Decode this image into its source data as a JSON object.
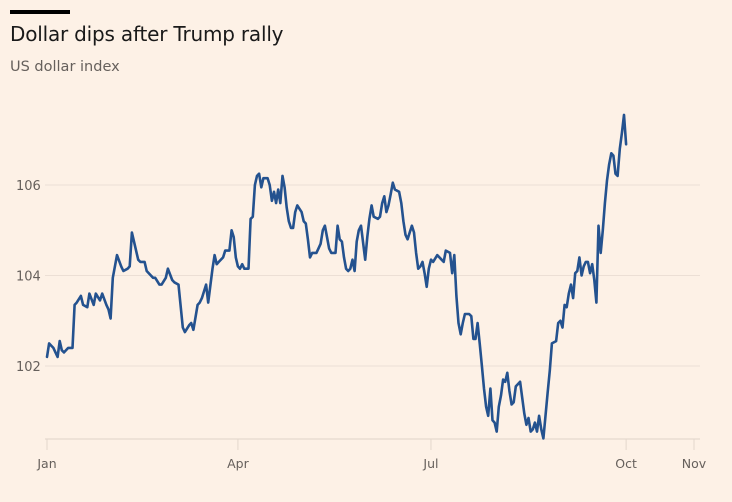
{
  "chart_data": {
    "type": "line",
    "title": "Dollar dips after Trump rally",
    "subtitle": "US dollar index",
    "xlabel": "",
    "ylabel": "",
    "ylim": [
      100.4,
      107.7
    ],
    "grid": true,
    "y_ticks": [
      102,
      104,
      106
    ],
    "y_tick_labels": [
      "102",
      "104",
      "106"
    ],
    "x_ticks": [
      {
        "day": 0,
        "label": "Jan"
      },
      {
        "day": 90,
        "label": "Apr"
      },
      {
        "day": 181,
        "label": "Jul"
      },
      {
        "day": 273,
        "label": "Oct"
      },
      {
        "day": 305,
        "label": "Nov"
      }
    ],
    "xlim_days": [
      0,
      305
    ],
    "series": [
      {
        "name": "US dollar index",
        "color": "#24528f",
        "points": [
          [
            0,
            102.2
          ],
          [
            1,
            102.5
          ],
          [
            2,
            102.45
          ],
          [
            3,
            102.4
          ],
          [
            5,
            102.2
          ],
          [
            6,
            102.55
          ],
          [
            7,
            102.35
          ],
          [
            8,
            102.3
          ],
          [
            10,
            102.4
          ],
          [
            12,
            102.4
          ],
          [
            13,
            103.35
          ],
          [
            14,
            103.4
          ],
          [
            16,
            103.55
          ],
          [
            17,
            103.35
          ],
          [
            19,
            103.3
          ],
          [
            20,
            103.6
          ],
          [
            22,
            103.35
          ],
          [
            23,
            103.6
          ],
          [
            25,
            103.45
          ],
          [
            26,
            103.6
          ],
          [
            28,
            103.35
          ],
          [
            29,
            103.25
          ],
          [
            30,
            103.05
          ],
          [
            31,
            103.95
          ],
          [
            33,
            104.45
          ],
          [
            35,
            104.2
          ],
          [
            36,
            104.1
          ],
          [
            38,
            104.15
          ],
          [
            39,
            104.2
          ],
          [
            40,
            104.95
          ],
          [
            41,
            104.75
          ],
          [
            43,
            104.35
          ],
          [
            44,
            104.3
          ],
          [
            46,
            104.3
          ],
          [
            47,
            104.1
          ],
          [
            49,
            104.0
          ],
          [
            50,
            103.95
          ],
          [
            51,
            103.95
          ],
          [
            53,
            103.8
          ],
          [
            54,
            103.8
          ],
          [
            56,
            103.95
          ],
          [
            57,
            104.15
          ],
          [
            59,
            103.9
          ],
          [
            60,
            103.85
          ],
          [
            62,
            103.8
          ],
          [
            64,
            102.85
          ],
          [
            65,
            102.75
          ],
          [
            67,
            102.9
          ],
          [
            68,
            102.95
          ],
          [
            69,
            102.8
          ],
          [
            71,
            103.35
          ],
          [
            72,
            103.4
          ],
          [
            73,
            103.5
          ],
          [
            75,
            103.8
          ],
          [
            76,
            103.4
          ],
          [
            78,
            104.15
          ],
          [
            79,
            104.45
          ],
          [
            80,
            104.25
          ],
          [
            81,
            104.3
          ],
          [
            83,
            104.4
          ],
          [
            84,
            104.55
          ],
          [
            86,
            104.55
          ],
          [
            87,
            105.0
          ],
          [
            88,
            104.85
          ],
          [
            89,
            104.4
          ],
          [
            90,
            104.2
          ],
          [
            91,
            104.15
          ],
          [
            92,
            104.25
          ],
          [
            93,
            104.15
          ],
          [
            95,
            104.15
          ],
          [
            96,
            105.25
          ],
          [
            97,
            105.3
          ],
          [
            98,
            106.0
          ],
          [
            99,
            106.2
          ],
          [
            100,
            106.25
          ],
          [
            101,
            105.95
          ],
          [
            102,
            106.15
          ],
          [
            104,
            106.15
          ],
          [
            105,
            106.0
          ],
          [
            106,
            105.65
          ],
          [
            107,
            105.85
          ],
          [
            108,
            105.6
          ],
          [
            109,
            105.9
          ],
          [
            110,
            105.6
          ],
          [
            111,
            106.2
          ],
          [
            112,
            105.95
          ],
          [
            113,
            105.5
          ],
          [
            114,
            105.2
          ],
          [
            115,
            105.05
          ],
          [
            116,
            105.05
          ],
          [
            117,
            105.4
          ],
          [
            118,
            105.55
          ],
          [
            120,
            105.4
          ],
          [
            121,
            105.2
          ],
          [
            122,
            105.15
          ],
          [
            123,
            104.8
          ],
          [
            124,
            104.4
          ],
          [
            125,
            104.5
          ],
          [
            127,
            104.5
          ],
          [
            128,
            104.6
          ],
          [
            129,
            104.7
          ],
          [
            130,
            105.0
          ],
          [
            131,
            105.1
          ],
          [
            132,
            104.85
          ],
          [
            133,
            104.6
          ],
          [
            134,
            104.5
          ],
          [
            136,
            104.5
          ],
          [
            137,
            105.1
          ],
          [
            138,
            104.8
          ],
          [
            139,
            104.75
          ],
          [
            140,
            104.4
          ],
          [
            141,
            104.15
          ],
          [
            142,
            104.1
          ],
          [
            143,
            104.15
          ],
          [
            144,
            104.35
          ],
          [
            145,
            104.1
          ],
          [
            146,
            104.75
          ],
          [
            147,
            105.0
          ],
          [
            148,
            105.1
          ],
          [
            150,
            104.35
          ],
          [
            151,
            104.85
          ],
          [
            152,
            105.25
          ],
          [
            153,
            105.55
          ],
          [
            154,
            105.3
          ],
          [
            156,
            105.25
          ],
          [
            157,
            105.3
          ],
          [
            158,
            105.6
          ],
          [
            159,
            105.75
          ],
          [
            160,
            105.4
          ],
          [
            161,
            105.55
          ],
          [
            162,
            105.8
          ],
          [
            163,
            106.05
          ],
          [
            164,
            105.9
          ],
          [
            166,
            105.85
          ],
          [
            167,
            105.6
          ],
          [
            168,
            105.2
          ],
          [
            169,
            104.9
          ],
          [
            170,
            104.8
          ],
          [
            171,
            104.95
          ],
          [
            172,
            105.1
          ],
          [
            173,
            104.95
          ],
          [
            174,
            104.5
          ],
          [
            175,
            104.15
          ],
          [
            176,
            104.2
          ],
          [
            177,
            104.3
          ],
          [
            178,
            104.05
          ],
          [
            179,
            103.75
          ],
          [
            180,
            104.15
          ],
          [
            181,
            104.35
          ],
          [
            182,
            104.3
          ],
          [
            184,
            104.45
          ],
          [
            186,
            104.35
          ],
          [
            187,
            104.3
          ],
          [
            188,
            104.55
          ],
          [
            190,
            104.5
          ],
          [
            191,
            104.05
          ],
          [
            192,
            104.45
          ],
          [
            193,
            103.55
          ],
          [
            194,
            102.95
          ],
          [
            195,
            102.7
          ],
          [
            196,
            102.95
          ],
          [
            197,
            103.15
          ],
          [
            199,
            103.15
          ],
          [
            200,
            103.1
          ],
          [
            201,
            102.6
          ],
          [
            202,
            102.6
          ],
          [
            203,
            102.95
          ],
          [
            204,
            102.5
          ],
          [
            205,
            102.0
          ],
          [
            206,
            101.5
          ],
          [
            207,
            101.1
          ],
          [
            208,
            100.9
          ],
          [
            209,
            101.5
          ],
          [
            210,
            100.8
          ],
          [
            211,
            100.75
          ],
          [
            212,
            100.55
          ],
          [
            213,
            101.1
          ],
          [
            214,
            101.35
          ],
          [
            215,
            101.7
          ],
          [
            216,
            101.65
          ],
          [
            217,
            101.85
          ],
          [
            218,
            101.45
          ],
          [
            219,
            101.15
          ],
          [
            220,
            101.2
          ],
          [
            221,
            101.55
          ],
          [
            223,
            101.65
          ],
          [
            224,
            101.3
          ],
          [
            225,
            100.95
          ],
          [
            226,
            100.7
          ],
          [
            227,
            100.85
          ],
          [
            228,
            100.55
          ],
          [
            229,
            100.6
          ],
          [
            230,
            100.75
          ],
          [
            231,
            100.55
          ],
          [
            232,
            100.9
          ],
          [
            233,
            100.6
          ],
          [
            234,
            100.4
          ],
          [
            235,
            100.9
          ],
          [
            236,
            101.4
          ],
          [
            237,
            101.9
          ],
          [
            238,
            102.5
          ],
          [
            240,
            102.55
          ],
          [
            241,
            102.95
          ],
          [
            242,
            103.0
          ],
          [
            243,
            102.85
          ],
          [
            244,
            103.35
          ],
          [
            245,
            103.3
          ],
          [
            246,
            103.6
          ],
          [
            247,
            103.8
          ],
          [
            248,
            103.5
          ],
          [
            249,
            104.05
          ],
          [
            250,
            104.1
          ],
          [
            251,
            104.4
          ],
          [
            252,
            104.0
          ],
          [
            253,
            104.2
          ],
          [
            254,
            104.3
          ],
          [
            255,
            104.3
          ],
          [
            256,
            104.05
          ],
          [
            257,
            104.25
          ],
          [
            258,
            103.9
          ],
          [
            259,
            103.4
          ],
          [
            260,
            105.1
          ],
          [
            261,
            104.5
          ],
          [
            262,
            105.0
          ],
          [
            263,
            105.6
          ],
          [
            264,
            106.1
          ],
          [
            265,
            106.45
          ],
          [
            266,
            106.7
          ],
          [
            267,
            106.65
          ],
          [
            268,
            106.25
          ],
          [
            269,
            106.2
          ],
          [
            270,
            106.8
          ],
          [
            271,
            107.15
          ],
          [
            272,
            107.55
          ],
          [
            273,
            106.9
          ]
        ]
      }
    ]
  }
}
